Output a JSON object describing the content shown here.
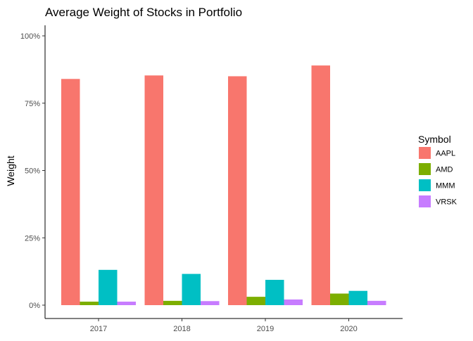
{
  "chart_data": {
    "type": "bar",
    "title": "Average Weight of Stocks in Portfolio",
    "xlabel": "",
    "ylabel": "Weight",
    "categories": [
      "2017",
      "2018",
      "2019",
      "2020"
    ],
    "yticks": [
      "0%",
      "25%",
      "50%",
      "75%",
      "100%"
    ],
    "ylim": [
      0,
      1.0
    ],
    "grid": false,
    "legend": {
      "title": "Symbol",
      "placement": "right"
    },
    "series": [
      {
        "name": "AAPL",
        "color": "#F8766D",
        "values": [
          0.84,
          0.853,
          0.85,
          0.89
        ]
      },
      {
        "name": "AMD",
        "color": "#7CAE00",
        "values": [
          0.013,
          0.016,
          0.031,
          0.043
        ]
      },
      {
        "name": "MMM",
        "color": "#00BFC4",
        "values": [
          0.131,
          0.116,
          0.094,
          0.053
        ]
      },
      {
        "name": "VRSK",
        "color": "#C77CFF",
        "values": [
          0.013,
          0.015,
          0.021,
          0.016
        ]
      }
    ]
  }
}
